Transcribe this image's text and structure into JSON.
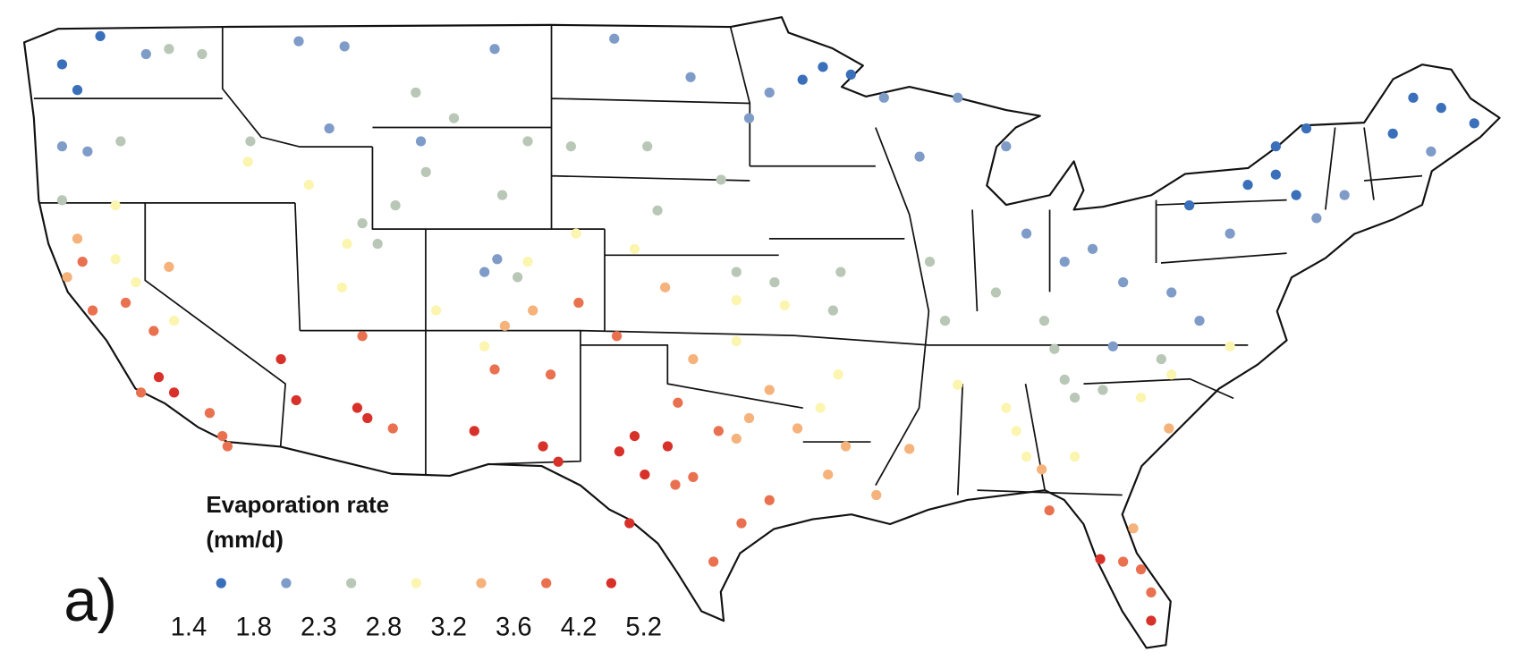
{
  "panel_label": "a)",
  "legend": {
    "title": [
      "Evaporation rate",
      "(mm/d)"
    ],
    "breaks": [
      1.4,
      1.8,
      2.3,
      2.8,
      3.2,
      3.6,
      4.2,
      5.2
    ],
    "colors": [
      "#3a6fba",
      "#7f9cc9",
      "#b9c7b6",
      "#fbf5b0",
      "#f6b27b",
      "#e9714f",
      "#d7312a"
    ]
  },
  "points": [
    {
      "lon": -121.9,
      "lat": 48.6,
      "value": 1.6
    },
    {
      "lon": -122.8,
      "lat": 46.5,
      "value": 1.6
    },
    {
      "lon": -123.4,
      "lat": 47.5,
      "value": 1.6
    },
    {
      "lon": -93.5,
      "lat": 47.4,
      "value": 1.6
    },
    {
      "lon": -94.3,
      "lat": 46.9,
      "value": 1.6
    },
    {
      "lon": -70.3,
      "lat": 46.2,
      "value": 1.6
    },
    {
      "lon": -69.2,
      "lat": 45.8,
      "value": 1.6
    },
    {
      "lon": -67.9,
      "lat": 45.2,
      "value": 1.6
    },
    {
      "lon": -71.1,
      "lat": 44.8,
      "value": 1.6
    },
    {
      "lon": -74.5,
      "lat": 45.0,
      "value": 1.6
    },
    {
      "lon": -75.7,
      "lat": 43.2,
      "value": 1.6
    },
    {
      "lon": -74.9,
      "lat": 42.4,
      "value": 1.6
    },
    {
      "lon": -79.1,
      "lat": 42.0,
      "value": 1.6
    },
    {
      "lon": -76.8,
      "lat": 42.8,
      "value": 1.6
    },
    {
      "lon": -75.7,
      "lat": 44.3,
      "value": 1.6
    },
    {
      "lon": -92.4,
      "lat": 47.1,
      "value": 1.6
    },
    {
      "lon": -120.1,
      "lat": 47.9,
      "value": 2.0
    },
    {
      "lon": -114.1,
      "lat": 48.4,
      "value": 2.0
    },
    {
      "lon": -112.3,
      "lat": 48.2,
      "value": 2.0
    },
    {
      "lon": -106.4,
      "lat": 48.1,
      "value": 2.0
    },
    {
      "lon": -101.7,
      "lat": 48.5,
      "value": 2.0
    },
    {
      "lon": -98.7,
      "lat": 47.0,
      "value": 2.0
    },
    {
      "lon": -95.6,
      "lat": 46.4,
      "value": 2.0
    },
    {
      "lon": -96.4,
      "lat": 45.4,
      "value": 2.0
    },
    {
      "lon": -91.1,
      "lat": 46.2,
      "value": 2.0
    },
    {
      "lon": -89.7,
      "lat": 43.9,
      "value": 2.0
    },
    {
      "lon": -88.2,
      "lat": 46.2,
      "value": 2.0
    },
    {
      "lon": -86.3,
      "lat": 44.3,
      "value": 2.0
    },
    {
      "lon": -85.5,
      "lat": 40.9,
      "value": 2.0
    },
    {
      "lon": -82.9,
      "lat": 40.3,
      "value": 2.0
    },
    {
      "lon": -81.7,
      "lat": 39.0,
      "value": 2.0
    },
    {
      "lon": -79.8,
      "lat": 38.6,
      "value": 2.0
    },
    {
      "lon": -84.0,
      "lat": 39.8,
      "value": 2.0
    },
    {
      "lon": -77.5,
      "lat": 40.9,
      "value": 2.0
    },
    {
      "lon": -74.1,
      "lat": 41.5,
      "value": 2.0
    },
    {
      "lon": -73.0,
      "lat": 42.4,
      "value": 2.0
    },
    {
      "lon": -69.6,
      "lat": 44.1,
      "value": 2.0
    },
    {
      "lon": -106.3,
      "lat": 39.9,
      "value": 2.0
    },
    {
      "lon": -106.8,
      "lat": 39.4,
      "value": 2.0
    },
    {
      "lon": -122.4,
      "lat": 44.1,
      "value": 2.0
    },
    {
      "lon": -123.4,
      "lat": 44.3,
      "value": 2.0
    },
    {
      "lon": -109.3,
      "lat": 44.5,
      "value": 2.0
    },
    {
      "lon": -112.9,
      "lat": 45.0,
      "value": 2.0
    },
    {
      "lon": -82.1,
      "lat": 36.5,
      "value": 2.0
    },
    {
      "lon": -78.7,
      "lat": 37.5,
      "value": 2.0
    },
    {
      "lon": -119.2,
      "lat": 48.1,
      "value": 2.5
    },
    {
      "lon": -117.9,
      "lat": 47.9,
      "value": 2.5
    },
    {
      "lon": -121.1,
      "lat": 44.5,
      "value": 2.5
    },
    {
      "lon": -116.0,
      "lat": 44.5,
      "value": 2.5
    },
    {
      "lon": -109.5,
      "lat": 46.4,
      "value": 2.5
    },
    {
      "lon": -108.0,
      "lat": 45.4,
      "value": 2.5
    },
    {
      "lon": -105.1,
      "lat": 44.5,
      "value": 2.5
    },
    {
      "lon": -109.1,
      "lat": 43.3,
      "value": 2.5
    },
    {
      "lon": -106.1,
      "lat": 42.4,
      "value": 2.5
    },
    {
      "lon": -110.3,
      "lat": 42.0,
      "value": 2.5
    },
    {
      "lon": -103.4,
      "lat": 44.3,
      "value": 2.5
    },
    {
      "lon": -100.4,
      "lat": 44.3,
      "value": 2.5
    },
    {
      "lon": -97.5,
      "lat": 43.0,
      "value": 2.5
    },
    {
      "lon": -100.0,
      "lat": 41.8,
      "value": 2.5
    },
    {
      "lon": -95.4,
      "lat": 39.0,
      "value": 2.5
    },
    {
      "lon": -96.9,
      "lat": 39.4,
      "value": 2.5
    },
    {
      "lon": -93.1,
      "lat": 37.9,
      "value": 2.5
    },
    {
      "lon": -92.8,
      "lat": 39.4,
      "value": 2.5
    },
    {
      "lon": -89.3,
      "lat": 39.8,
      "value": 2.5
    },
    {
      "lon": -88.7,
      "lat": 37.5,
      "value": 2.5
    },
    {
      "lon": -86.7,
      "lat": 38.6,
      "value": 2.5
    },
    {
      "lon": -84.8,
      "lat": 37.5,
      "value": 2.5
    },
    {
      "lon": -84.0,
      "lat": 35.2,
      "value": 2.5
    },
    {
      "lon": -84.4,
      "lat": 36.4,
      "value": 2.5
    },
    {
      "lon": -82.5,
      "lat": 34.8,
      "value": 2.5
    },
    {
      "lon": -80.2,
      "lat": 36.0,
      "value": 2.5
    },
    {
      "lon": -83.6,
      "lat": 34.5,
      "value": 2.5
    },
    {
      "lon": -111.0,
      "lat": 40.5,
      "value": 2.5
    },
    {
      "lon": -111.6,
      "lat": 41.3,
      "value": 2.5
    },
    {
      "lon": -123.4,
      "lat": 42.2,
      "value": 2.5
    },
    {
      "lon": -105.5,
      "lat": 39.2,
      "value": 2.5
    },
    {
      "lon": -121.3,
      "lat": 42.0,
      "value": 3.0
    },
    {
      "lon": -121.3,
      "lat": 39.9,
      "value": 3.0
    },
    {
      "lon": -120.5,
      "lat": 39.0,
      "value": 3.0
    },
    {
      "lon": -119.0,
      "lat": 37.5,
      "value": 3.0
    },
    {
      "lon": -116.1,
      "lat": 43.7,
      "value": 3.0
    },
    {
      "lon": -113.7,
      "lat": 42.8,
      "value": 3.0
    },
    {
      "lon": -112.2,
      "lat": 40.5,
      "value": 3.0
    },
    {
      "lon": -112.4,
      "lat": 38.8,
      "value": 3.0
    },
    {
      "lon": -108.7,
      "lat": 37.9,
      "value": 3.0
    },
    {
      "lon": -105.1,
      "lat": 39.8,
      "value": 3.0
    },
    {
      "lon": -103.2,
      "lat": 40.9,
      "value": 3.0
    },
    {
      "lon": -100.9,
      "lat": 40.3,
      "value": 3.0
    },
    {
      "lon": -96.9,
      "lat": 38.3,
      "value": 3.0
    },
    {
      "lon": -95.0,
      "lat": 38.1,
      "value": 3.0
    },
    {
      "lon": -92.9,
      "lat": 35.4,
      "value": 3.0
    },
    {
      "lon": -93.6,
      "lat": 34.1,
      "value": 3.0
    },
    {
      "lon": -88.2,
      "lat": 35.0,
      "value": 3.0
    },
    {
      "lon": -86.3,
      "lat": 34.1,
      "value": 3.0
    },
    {
      "lon": -85.9,
      "lat": 33.2,
      "value": 3.0
    },
    {
      "lon": -81.0,
      "lat": 34.5,
      "value": 3.0
    },
    {
      "lon": -79.8,
      "lat": 35.4,
      "value": 3.0
    },
    {
      "lon": -77.5,
      "lat": 36.5,
      "value": 3.0
    },
    {
      "lon": -96.9,
      "lat": 36.7,
      "value": 3.0
    },
    {
      "lon": -106.8,
      "lat": 36.5,
      "value": 3.0
    },
    {
      "lon": -83.6,
      "lat": 32.2,
      "value": 3.0
    },
    {
      "lon": -85.5,
      "lat": 32.2,
      "value": 3.0
    },
    {
      "lon": -122.8,
      "lat": 40.7,
      "value": 3.4
    },
    {
      "lon": -123.2,
      "lat": 39.2,
      "value": 3.4
    },
    {
      "lon": -119.2,
      "lat": 39.6,
      "value": 3.4
    },
    {
      "lon": -104.9,
      "lat": 37.9,
      "value": 3.4
    },
    {
      "lon": -99.7,
      "lat": 38.8,
      "value": 3.4
    },
    {
      "lon": -98.6,
      "lat": 36.0,
      "value": 3.4
    },
    {
      "lon": -95.6,
      "lat": 34.8,
      "value": 3.4
    },
    {
      "lon": -96.4,
      "lat": 33.7,
      "value": 3.4
    },
    {
      "lon": -94.5,
      "lat": 33.3,
      "value": 3.4
    },
    {
      "lon": -92.6,
      "lat": 32.6,
      "value": 3.4
    },
    {
      "lon": -93.3,
      "lat": 31.5,
      "value": 3.4
    },
    {
      "lon": -91.4,
      "lat": 30.7,
      "value": 3.4
    },
    {
      "lon": -90.1,
      "lat": 32.5,
      "value": 3.4
    },
    {
      "lon": -84.9,
      "lat": 31.7,
      "value": 3.4
    },
    {
      "lon": -79.9,
      "lat": 33.3,
      "value": 3.4
    },
    {
      "lon": -106.0,
      "lat": 37.3,
      "value": 3.4
    },
    {
      "lon": -96.9,
      "lat": 32.9,
      "value": 3.4
    },
    {
      "lon": -81.3,
      "lat": 29.4,
      "value": 3.4
    },
    {
      "lon": -122.2,
      "lat": 37.9,
      "value": 3.9
    },
    {
      "lon": -120.9,
      "lat": 38.2,
      "value": 3.9
    },
    {
      "lon": -119.8,
      "lat": 37.1,
      "value": 3.9
    },
    {
      "lon": -120.3,
      "lat": 34.7,
      "value": 3.9
    },
    {
      "lon": -117.1,
      "lat": 33.0,
      "value": 3.9
    },
    {
      "lon": -117.6,
      "lat": 33.9,
      "value": 3.9
    },
    {
      "lon": -122.6,
      "lat": 39.8,
      "value": 3.9
    },
    {
      "lon": -111.6,
      "lat": 36.9,
      "value": 3.9
    },
    {
      "lon": -106.4,
      "lat": 35.6,
      "value": 3.9
    },
    {
      "lon": -104.2,
      "lat": 35.4,
      "value": 3.9
    },
    {
      "lon": -103.1,
      "lat": 38.2,
      "value": 3.9
    },
    {
      "lon": -101.6,
      "lat": 36.9,
      "value": 3.9
    },
    {
      "lon": -99.2,
      "lat": 34.3,
      "value": 3.9
    },
    {
      "lon": -97.6,
      "lat": 33.2,
      "value": 3.9
    },
    {
      "lon": -98.6,
      "lat": 31.4,
      "value": 3.9
    },
    {
      "lon": -96.7,
      "lat": 29.6,
      "value": 3.9
    },
    {
      "lon": -97.8,
      "lat": 28.1,
      "value": 3.9
    },
    {
      "lon": -95.6,
      "lat": 30.5,
      "value": 3.9
    },
    {
      "lon": -99.3,
      "lat": 31.1,
      "value": 3.9
    },
    {
      "lon": -84.6,
      "lat": 30.1,
      "value": 3.9
    },
    {
      "lon": -81.7,
      "lat": 28.1,
      "value": 3.9
    },
    {
      "lon": -80.6,
      "lat": 26.9,
      "value": 3.9
    },
    {
      "lon": -81.0,
      "lat": 27.8,
      "value": 3.9
    },
    {
      "lon": -116.9,
      "lat": 32.6,
      "value": 3.9
    },
    {
      "lon": -110.4,
      "lat": 33.3,
      "value": 3.9
    },
    {
      "lon": -119.6,
      "lat": 35.3,
      "value": 4.6
    },
    {
      "lon": -119.0,
      "lat": 34.7,
      "value": 4.6
    },
    {
      "lon": -114.8,
      "lat": 36.0,
      "value": 4.6
    },
    {
      "lon": -114.2,
      "lat": 34.4,
      "value": 4.6
    },
    {
      "lon": -111.8,
      "lat": 34.1,
      "value": 4.6
    },
    {
      "lon": -111.4,
      "lat": 33.7,
      "value": 4.6
    },
    {
      "lon": -107.2,
      "lat": 33.2,
      "value": 4.6
    },
    {
      "lon": -104.5,
      "lat": 32.6,
      "value": 4.6
    },
    {
      "lon": -103.9,
      "lat": 32.0,
      "value": 4.6
    },
    {
      "lon": -101.5,
      "lat": 32.4,
      "value": 4.6
    },
    {
      "lon": -100.9,
      "lat": 33.0,
      "value": 4.6
    },
    {
      "lon": -100.5,
      "lat": 31.5,
      "value": 4.6
    },
    {
      "lon": -99.6,
      "lat": 32.6,
      "value": 4.6
    },
    {
      "lon": -101.1,
      "lat": 29.6,
      "value": 4.6
    },
    {
      "lon": -80.6,
      "lat": 25.8,
      "value": 4.6
    },
    {
      "lon": -82.6,
      "lat": 28.2,
      "value": 4.6
    }
  ]
}
